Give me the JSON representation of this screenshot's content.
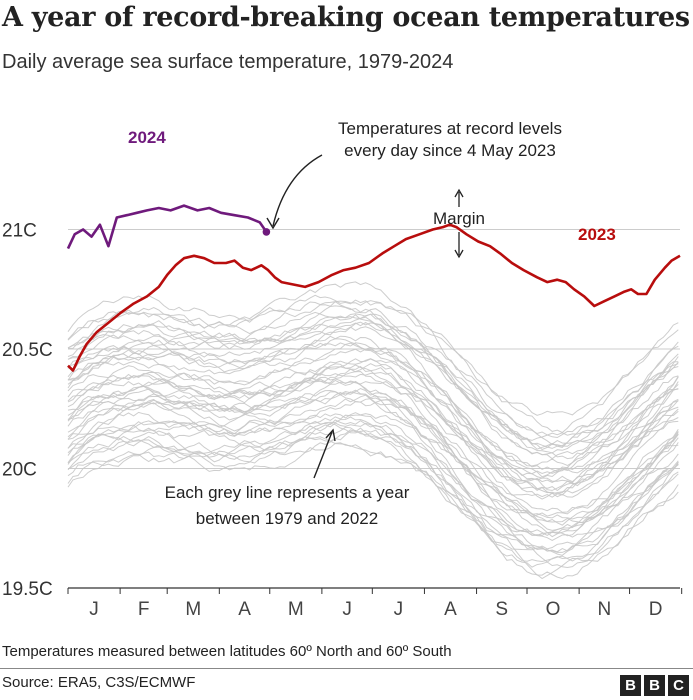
{
  "header": {
    "title": "A year of record-breaking ocean temperatures",
    "subtitle": "Daily average sea surface temperature, 1979-2024"
  },
  "footer": {
    "note": "Temperatures measured between latitudes 60º North and 60º South",
    "source": "Source: ERA5, C3S/ECMWF",
    "logo_letters": [
      "B",
      "B",
      "C"
    ]
  },
  "chart_data": {
    "type": "line",
    "title": "A year of record-breaking ocean temperatures",
    "subtitle": "Daily average sea surface temperature, 1979-2024",
    "xlabel": "",
    "ylabel": "",
    "x_ticks": [
      "J",
      "F",
      "M",
      "A",
      "M",
      "J",
      "J",
      "A",
      "S",
      "O",
      "N",
      "D"
    ],
    "y_ticks": [
      {
        "value": 19.5,
        "label": "19.5C"
      },
      {
        "value": 20.0,
        "label": "20C"
      },
      {
        "value": 20.5,
        "label": "20.5C"
      },
      {
        "value": 21.0,
        "label": "21C"
      }
    ],
    "ylim": [
      19.5,
      21.5
    ],
    "xlim": [
      1,
      365
    ],
    "grid": true,
    "colors": {
      "y2024": "#6f1a7c",
      "y2023": "#b80d0d",
      "past": "#c8c8c8",
      "grid": "#cccccc"
    },
    "series": [
      {
        "name": "2024",
        "color": "#6f1a7c",
        "x": [
          1,
          5,
          10,
          15,
          20,
          25,
          30,
          36,
          42,
          48,
          55,
          62,
          70,
          78,
          85,
          92,
          100,
          108,
          115,
          119
        ],
        "y": [
          20.92,
          20.98,
          21.0,
          20.97,
          21.02,
          20.93,
          21.05,
          21.06,
          21.07,
          21.08,
          21.09,
          21.08,
          21.1,
          21.08,
          21.09,
          21.07,
          21.06,
          21.05,
          21.03,
          20.99
        ],
        "end_marker": true
      },
      {
        "name": "2023",
        "color": "#b80d0d",
        "x": [
          1,
          4,
          8,
          12,
          18,
          25,
          32,
          40,
          48,
          55,
          60,
          65,
          70,
          76,
          82,
          88,
          95,
          100,
          105,
          110,
          116,
          120,
          124,
          128,
          135,
          142,
          150,
          158,
          165,
          172,
          180,
          188,
          195,
          202,
          210,
          218,
          224,
          228,
          232,
          238,
          245,
          252,
          258,
          265,
          272,
          280,
          286,
          292,
          297,
          302,
          308,
          314,
          320,
          326,
          332,
          336,
          340,
          345,
          350,
          356,
          360,
          365
        ],
        "y": [
          20.43,
          20.41,
          20.47,
          20.52,
          20.57,
          20.61,
          20.65,
          20.69,
          20.72,
          20.76,
          20.81,
          20.85,
          20.88,
          20.89,
          20.88,
          20.86,
          20.86,
          20.87,
          20.84,
          20.83,
          20.85,
          20.83,
          20.8,
          20.78,
          20.77,
          20.76,
          20.78,
          20.81,
          20.83,
          20.84,
          20.86,
          20.9,
          20.93,
          20.96,
          20.98,
          21.0,
          21.01,
          21.02,
          21.01,
          20.98,
          20.95,
          20.93,
          20.9,
          20.86,
          20.83,
          20.8,
          20.78,
          20.79,
          20.78,
          20.75,
          20.72,
          20.68,
          20.7,
          20.72,
          20.74,
          20.75,
          20.73,
          20.73,
          20.79,
          20.84,
          20.87,
          20.89
        ]
      }
    ],
    "background_series_note": "Each grey line represents a year between 1979 and 2022",
    "annotations": [
      {
        "text_lines": [
          "Temperatures at record levels",
          "every day since 4 May 2023"
        ]
      },
      {
        "text_lines": [
          "Margin"
        ]
      },
      {
        "text_lines": [
          "Each grey line represents a year",
          "between 1979 and 2022"
        ]
      }
    ],
    "series_labels": [
      {
        "text": "2024",
        "series": "2024"
      },
      {
        "text": "2023",
        "series": "2023"
      }
    ]
  }
}
